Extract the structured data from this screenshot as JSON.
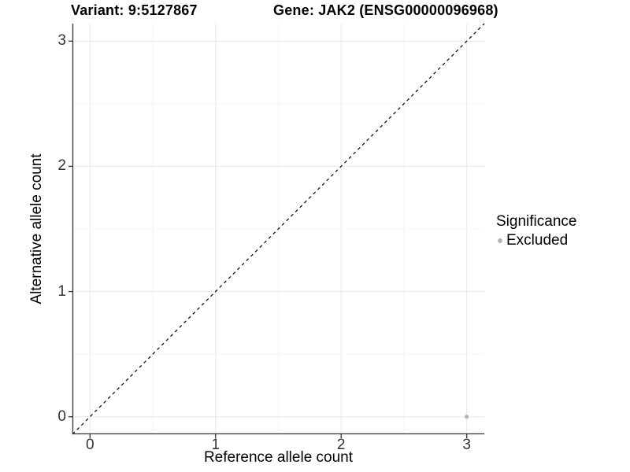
{
  "header": {
    "variant_title": "Variant: 9:5127867",
    "gene_title": "Gene: JAK2 (ENSG00000096968)"
  },
  "colors": {
    "background": "#ffffff",
    "axis_line": "#333333",
    "tick_text": "#333333",
    "major_grid": "#e8e8e8",
    "minor_grid": "#f4f4f4",
    "reference_line": "#000000",
    "excluded_point": "#b4b4b4"
  },
  "chart_data": {
    "type": "scatter",
    "title": "Variant: 9:5127867 / Gene: JAK2 (ENSG00000096968)",
    "xlabel": "Reference allele count",
    "ylabel": "Alternative allele count",
    "xlim": [
      -0.14,
      3.14
    ],
    "ylim": [
      -0.14,
      3.14
    ],
    "x_ticks": [
      0,
      1,
      2,
      3
    ],
    "y_ticks": [
      0,
      1,
      2,
      3
    ],
    "x_minor_ticks": [
      0.5,
      1.5,
      2.5
    ],
    "y_minor_ticks": [
      0.5,
      1.5,
      2.5
    ],
    "grid": "major-and-minor",
    "legend": {
      "title": "Significance",
      "position": "right",
      "entries": [
        {
          "label": "Excluded",
          "color": "#b4b4b4",
          "marker": "circle"
        }
      ]
    },
    "reference_line": {
      "type": "identity",
      "slope": 1,
      "intercept": 0,
      "style": "dashed",
      "color": "#000000"
    },
    "series": [
      {
        "name": "Excluded",
        "color": "#b4b4b4",
        "points": [
          {
            "x": 3,
            "y": 0
          }
        ]
      }
    ]
  }
}
